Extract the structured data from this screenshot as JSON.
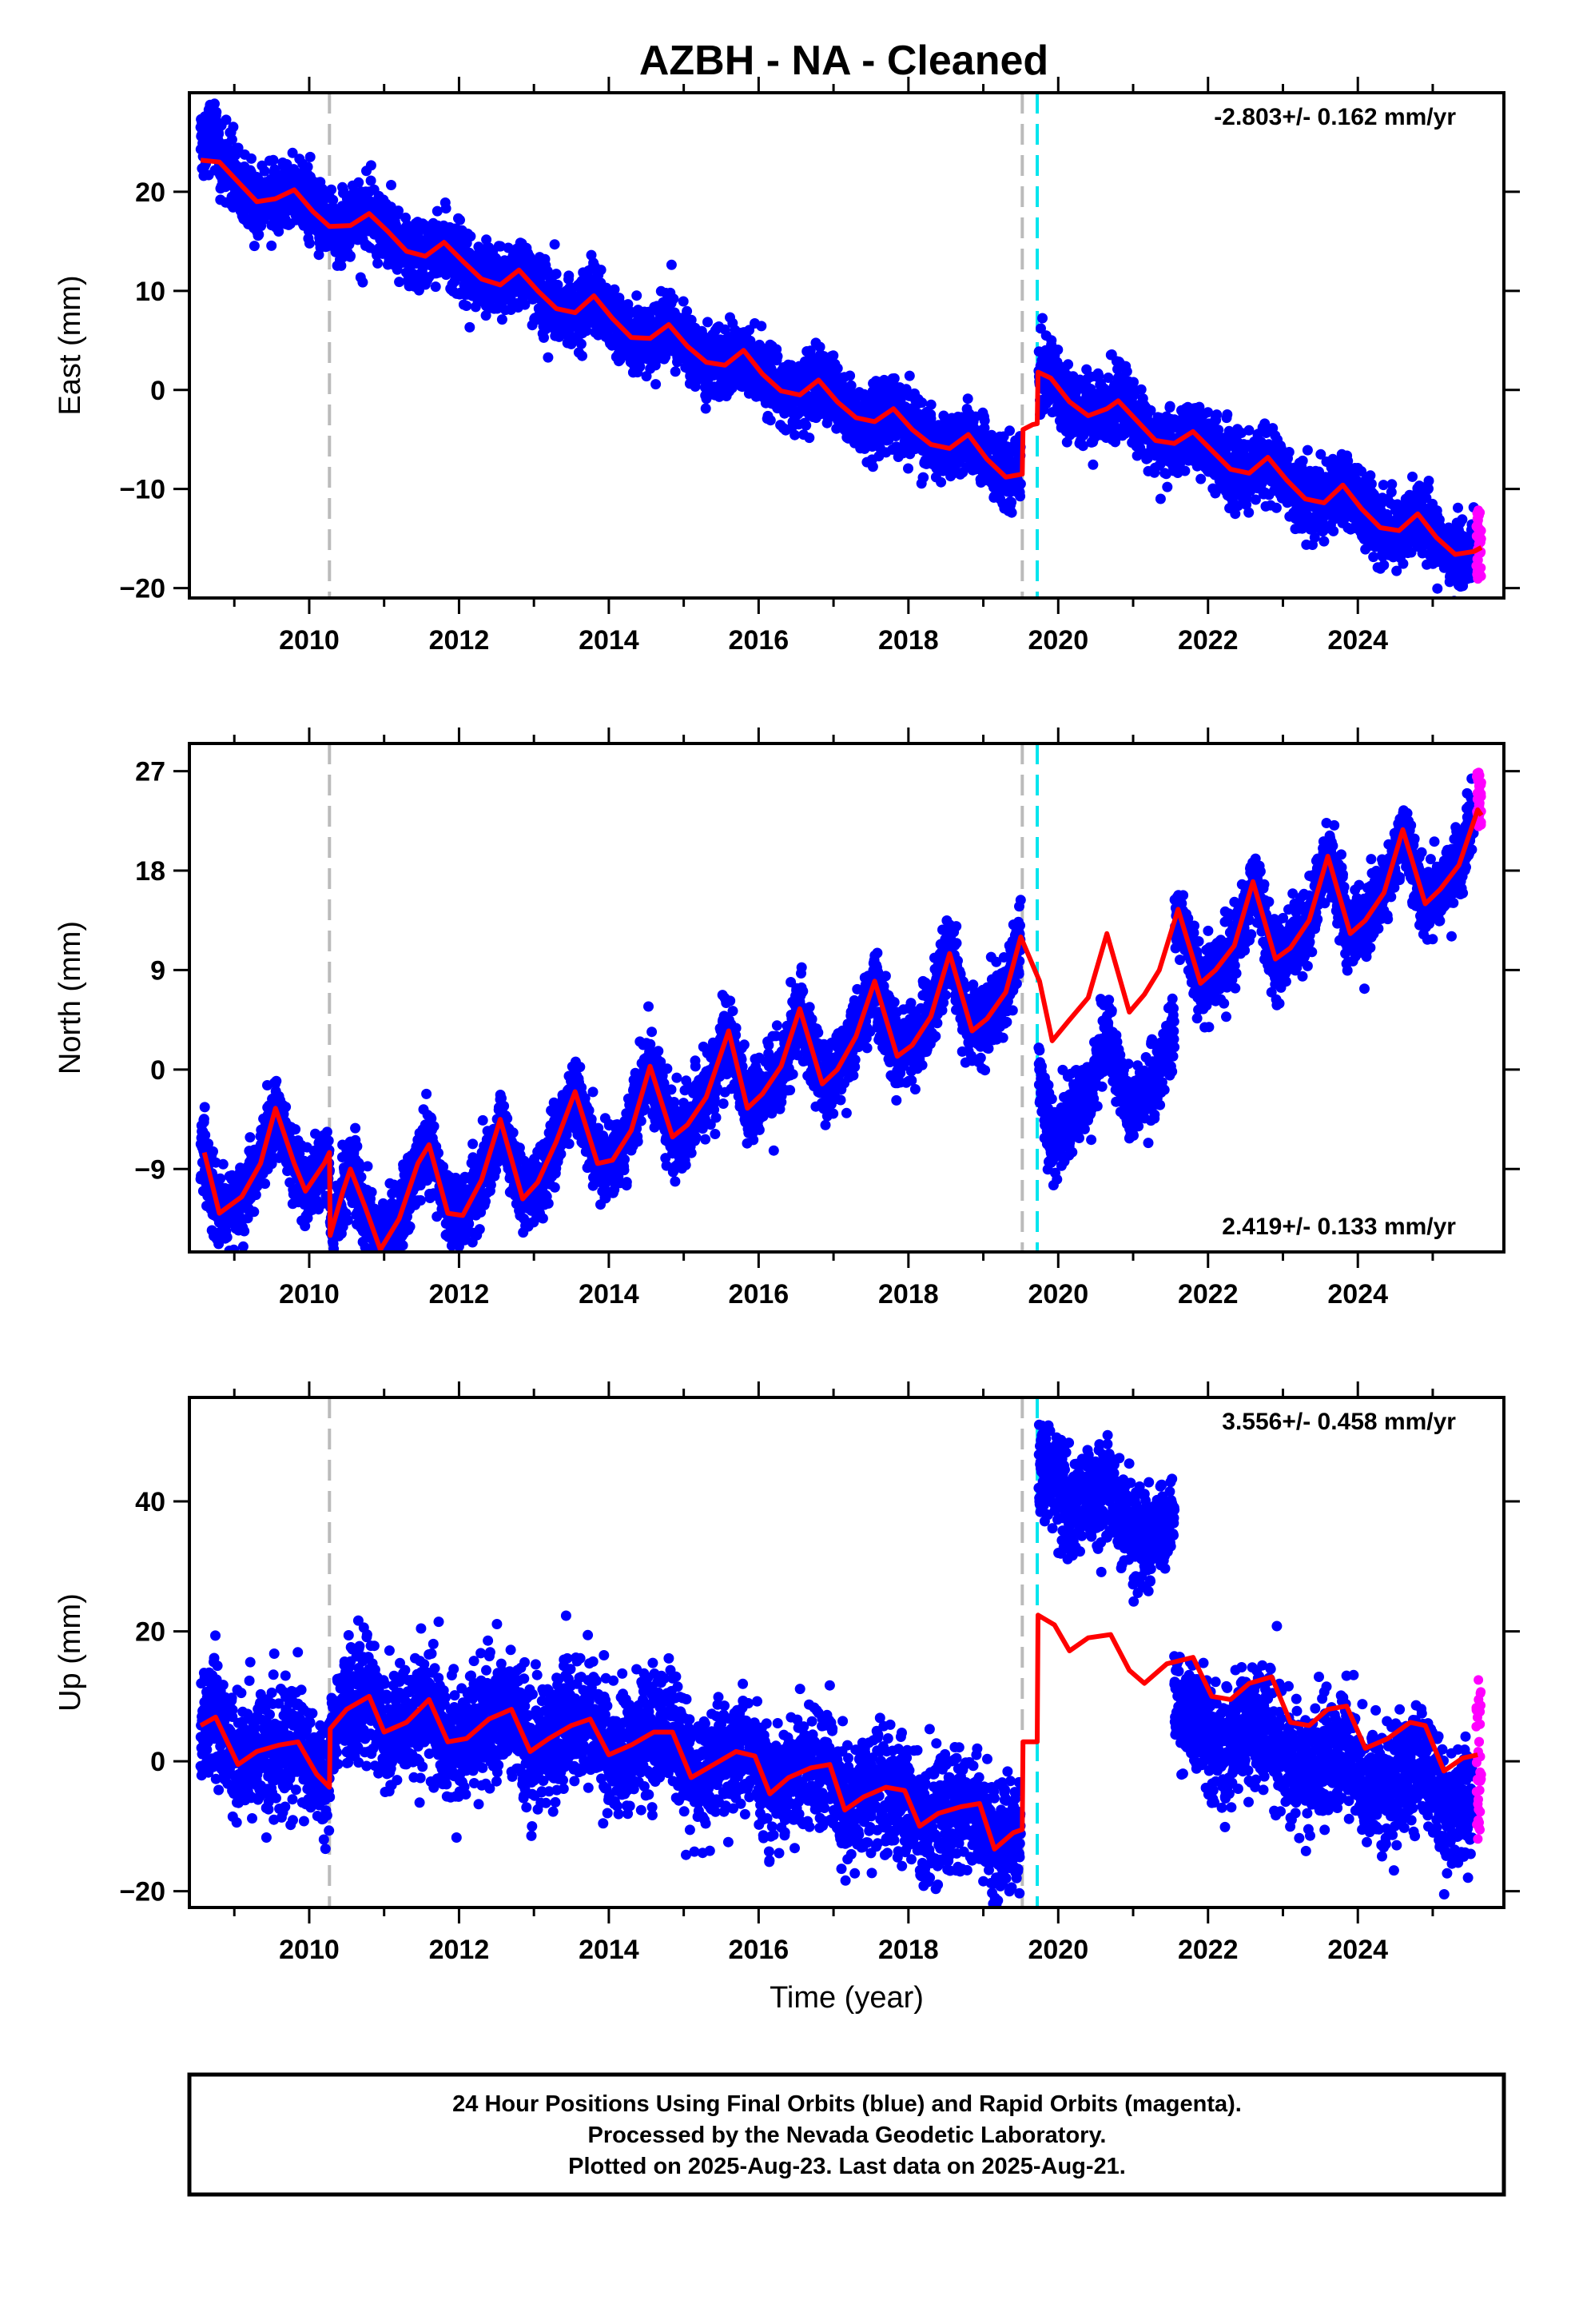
{
  "figure": {
    "title": "AZBH  - NA - Cleaned",
    "footer_lines": [
      "24 Hour Positions Using Final Orbits (blue) and Rapid Orbits (magenta).",
      "Processed by the Nevada Geodetic Laboratory.",
      "Plotted on 2025-Aug-23. Last data on 2025-Aug-21."
    ],
    "colors": {
      "final_orbit": "#0000ff",
      "rapid_orbit": "#ff00ff",
      "model": "#ff0000",
      "equipment_change": "#bbbbbb",
      "earthquake": "#00e5ee"
    }
  },
  "chart_data": [
    {
      "type": "scatter",
      "ylabel": "East (mm)",
      "xlabel": "",
      "xlim": [
        2008.4,
        2025.95
      ],
      "ylim": [
        -21,
        30
      ],
      "yticks": [
        20,
        10,
        0,
        -10,
        -20
      ],
      "xticks": [
        2010,
        2012,
        2014,
        2016,
        2018,
        2020,
        2022,
        2024
      ],
      "rate_label": "-2.803+/- 0.162 mm/yr",
      "rate_position": "top-right",
      "rate": -2.803,
      "rapid_range": [
        -20,
        -12
      ],
      "vlines": {
        "gray": [
          2010.27,
          2019.52
        ],
        "cyan": [
          2019.72
        ]
      },
      "model_knots": [
        [
          2008.55,
          23.2
        ],
        [
          2008.8,
          23.0
        ],
        [
          2009.05,
          21.0
        ],
        [
          2009.3,
          19.0
        ],
        [
          2009.55,
          19.3
        ],
        [
          2009.8,
          20.2
        ],
        [
          2010.05,
          18.0
        ],
        [
          2010.27,
          16.5
        ],
        [
          2010.55,
          16.6
        ],
        [
          2010.8,
          17.8
        ],
        [
          2011.05,
          16.0
        ],
        [
          2011.3,
          14.0
        ],
        [
          2011.55,
          13.5
        ],
        [
          2011.8,
          14.9
        ],
        [
          2012.05,
          13.0
        ],
        [
          2012.3,
          11.2
        ],
        [
          2012.55,
          10.6
        ],
        [
          2012.8,
          12.1
        ],
        [
          2013.05,
          10.0
        ],
        [
          2013.3,
          8.2
        ],
        [
          2013.55,
          7.8
        ],
        [
          2013.8,
          9.5
        ],
        [
          2014.05,
          7.2
        ],
        [
          2014.3,
          5.3
        ],
        [
          2014.55,
          5.2
        ],
        [
          2014.8,
          6.6
        ],
        [
          2015.05,
          4.4
        ],
        [
          2015.3,
          2.8
        ],
        [
          2015.55,
          2.5
        ],
        [
          2015.8,
          4.0
        ],
        [
          2016.05,
          1.6
        ],
        [
          2016.3,
          -0.1
        ],
        [
          2016.55,
          -0.5
        ],
        [
          2016.8,
          1.0
        ],
        [
          2017.05,
          -1.2
        ],
        [
          2017.3,
          -2.8
        ],
        [
          2017.55,
          -3.2
        ],
        [
          2017.8,
          -1.9
        ],
        [
          2018.05,
          -4.0
        ],
        [
          2018.3,
          -5.5
        ],
        [
          2018.55,
          -5.9
        ],
        [
          2018.8,
          -4.5
        ],
        [
          2019.05,
          -7.0
        ],
        [
          2019.3,
          -8.8
        ],
        [
          2019.52,
          -8.5
        ],
        [
          2019.53,
          -4.0
        ],
        [
          2019.66,
          -3.5
        ],
        [
          2019.72,
          -3.4
        ],
        [
          2019.73,
          1.8
        ],
        [
          2019.9,
          1.2
        ],
        [
          2020.15,
          -1.2
        ],
        [
          2020.4,
          -2.6
        ],
        [
          2020.65,
          -1.9
        ],
        [
          2020.8,
          -1.1
        ],
        [
          2021.05,
          -3.1
        ],
        [
          2021.3,
          -5.1
        ],
        [
          2021.55,
          -5.4
        ],
        [
          2021.8,
          -4.2
        ],
        [
          2022.05,
          -6.1
        ],
        [
          2022.3,
          -8.0
        ],
        [
          2022.55,
          -8.4
        ],
        [
          2022.8,
          -6.8
        ],
        [
          2023.05,
          -9.1
        ],
        [
          2023.3,
          -11.0
        ],
        [
          2023.55,
          -11.4
        ],
        [
          2023.8,
          -9.6
        ],
        [
          2024.05,
          -12.0
        ],
        [
          2024.3,
          -13.9
        ],
        [
          2024.55,
          -14.2
        ],
        [
          2024.8,
          -12.5
        ],
        [
          2025.05,
          -14.9
        ],
        [
          2025.3,
          -16.6
        ],
        [
          2025.55,
          -16.3
        ],
        [
          2025.65,
          -15.9
        ]
      ],
      "data_segments": [
        {
          "x": [
            2008.55,
            2008.8
          ],
          "offset": 2.2,
          "noise": 2.0
        },
        {
          "x": [
            2008.8,
            2019.5
          ],
          "offset": 0.0,
          "noise": 1.7
        },
        {
          "x": [
            2019.74,
            2025.55
          ],
          "offset": 0.0,
          "noise": 1.7
        }
      ]
    },
    {
      "type": "scatter",
      "ylabel": "North (mm)",
      "xlabel": "",
      "xlim": [
        2008.4,
        2025.95
      ],
      "ylim": [
        -16.5,
        29.5
      ],
      "yticks": [
        27,
        18,
        9,
        0,
        -9
      ],
      "xticks": [
        2010,
        2012,
        2014,
        2016,
        2018,
        2020,
        2022,
        2024
      ],
      "rate_label": "2.419+/- 0.133 mm/yr",
      "rate_position": "bottom-right",
      "rate": 2.419,
      "rapid_range": [
        22,
        27
      ],
      "vlines": {
        "gray": [
          2010.27,
          2019.52
        ],
        "cyan": [
          2019.72
        ]
      },
      "model_knots": [
        [
          2008.6,
          -7.5
        ],
        [
          2008.8,
          -13.0
        ],
        [
          2009.1,
          -11.5
        ],
        [
          2009.35,
          -8.5
        ],
        [
          2009.55,
          -3.5
        ],
        [
          2009.8,
          -8.5
        ],
        [
          2009.95,
          -11.0
        ],
        [
          2010.2,
          -8.5
        ],
        [
          2010.27,
          -7.5
        ],
        [
          2010.28,
          -15.0
        ],
        [
          2010.45,
          -11.0
        ],
        [
          2010.55,
          -9.0
        ],
        [
          2010.75,
          -12.5
        ],
        [
          2010.95,
          -16.3
        ],
        [
          2011.2,
          -13.5
        ],
        [
          2011.45,
          -8.5
        ],
        [
          2011.6,
          -6.8
        ],
        [
          2011.85,
          -13.0
        ],
        [
          2012.05,
          -13.2
        ],
        [
          2012.3,
          -10.0
        ],
        [
          2012.55,
          -4.5
        ],
        [
          2012.85,
          -11.7
        ],
        [
          2013.05,
          -10.2
        ],
        [
          2013.3,
          -6.5
        ],
        [
          2013.55,
          -2.0
        ],
        [
          2013.85,
          -8.5
        ],
        [
          2014.05,
          -8.2
        ],
        [
          2014.3,
          -5.5
        ],
        [
          2014.55,
          0.3
        ],
        [
          2014.85,
          -6.1
        ],
        [
          2015.05,
          -5.0
        ],
        [
          2015.3,
          -2.5
        ],
        [
          2015.6,
          3.5
        ],
        [
          2015.85,
          -3.5
        ],
        [
          2016.05,
          -2.2
        ],
        [
          2016.3,
          0.3
        ],
        [
          2016.55,
          5.5
        ],
        [
          2016.85,
          -1.3
        ],
        [
          2017.05,
          0.0
        ],
        [
          2017.3,
          3.0
        ],
        [
          2017.55,
          8.0
        ],
        [
          2017.85,
          1.2
        ],
        [
          2018.05,
          2.2
        ],
        [
          2018.3,
          4.8
        ],
        [
          2018.55,
          10.5
        ],
        [
          2018.85,
          3.5
        ],
        [
          2019.05,
          4.6
        ],
        [
          2019.3,
          7.0
        ],
        [
          2019.5,
          12.0
        ],
        [
          2019.75,
          8.0
        ],
        [
          2019.92,
          2.6
        ],
        [
          2020.15,
          4.5
        ],
        [
          2020.4,
          6.5
        ],
        [
          2020.65,
          12.3
        ],
        [
          2020.95,
          5.2
        ],
        [
          2021.15,
          6.8
        ],
        [
          2021.35,
          9.0
        ],
        [
          2021.6,
          14.5
        ],
        [
          2021.9,
          7.8
        ],
        [
          2022.1,
          9.0
        ],
        [
          2022.35,
          11.2
        ],
        [
          2022.6,
          17.0
        ],
        [
          2022.9,
          10.0
        ],
        [
          2023.1,
          11.0
        ],
        [
          2023.35,
          13.5
        ],
        [
          2023.6,
          19.3
        ],
        [
          2023.9,
          12.3
        ],
        [
          2024.1,
          13.5
        ],
        [
          2024.35,
          16.0
        ],
        [
          2024.6,
          21.7
        ],
        [
          2024.9,
          15.0
        ],
        [
          2025.1,
          16.3
        ],
        [
          2025.35,
          18.5
        ],
        [
          2025.6,
          23.5
        ],
        [
          2025.65,
          23.0
        ]
      ],
      "data_segments": [
        {
          "x": [
            2008.55,
            2019.5
          ],
          "offset": 0.0,
          "noise": 1.7
        },
        {
          "x": [
            2019.74,
            2021.55
          ],
          "offset": -9.0,
          "noise": 1.6
        },
        {
          "x": [
            2021.55,
            2025.55
          ],
          "offset": 0.0,
          "noise": 1.6
        }
      ]
    },
    {
      "type": "scatter",
      "ylabel": "Up (mm)",
      "xlabel": "Time (year)",
      "xlim": [
        2008.4,
        2025.95
      ],
      "ylim": [
        -22.5,
        56
      ],
      "yticks": [
        40,
        20,
        0,
        -20
      ],
      "xticks": [
        2010,
        2012,
        2014,
        2016,
        2018,
        2020,
        2022,
        2024
      ],
      "rate_label": "3.556+/- 0.458 mm/yr",
      "rate_position": "top-right",
      "rate": 3.556,
      "rapid_range": [
        -12,
        13
      ],
      "vlines": {
        "gray": [
          2010.27,
          2019.52
        ],
        "cyan": [
          2019.72
        ]
      },
      "model_knots": [
        [
          2008.55,
          5.5
        ],
        [
          2008.75,
          6.8
        ],
        [
          2009.05,
          -0.5
        ],
        [
          2009.3,
          1.5
        ],
        [
          2009.6,
          2.5
        ],
        [
          2009.85,
          3.0
        ],
        [
          2010.1,
          -2.0
        ],
        [
          2010.27,
          -4.0
        ],
        [
          2010.28,
          5.0
        ],
        [
          2010.5,
          8.0
        ],
        [
          2010.8,
          10.0
        ],
        [
          2011.0,
          4.5
        ],
        [
          2011.3,
          6.0
        ],
        [
          2011.6,
          9.5
        ],
        [
          2011.85,
          3.0
        ],
        [
          2012.1,
          3.5
        ],
        [
          2012.4,
          6.5
        ],
        [
          2012.7,
          8.0
        ],
        [
          2012.95,
          1.5
        ],
        [
          2013.2,
          3.5
        ],
        [
          2013.5,
          5.5
        ],
        [
          2013.75,
          6.5
        ],
        [
          2014.0,
          1.0
        ],
        [
          2014.3,
          2.5
        ],
        [
          2014.6,
          4.5
        ],
        [
          2014.85,
          4.5
        ],
        [
          2015.1,
          -2.5
        ],
        [
          2015.4,
          -0.5
        ],
        [
          2015.7,
          1.5
        ],
        [
          2015.95,
          0.8
        ],
        [
          2016.15,
          -5.0
        ],
        [
          2016.4,
          -2.5
        ],
        [
          2016.7,
          -1.0
        ],
        [
          2016.95,
          -0.5
        ],
        [
          2017.15,
          -7.5
        ],
        [
          2017.4,
          -5.5
        ],
        [
          2017.7,
          -4.0
        ],
        [
          2017.95,
          -4.5
        ],
        [
          2018.15,
          -10.0
        ],
        [
          2018.4,
          -8.0
        ],
        [
          2018.7,
          -7.0
        ],
        [
          2018.95,
          -6.5
        ],
        [
          2019.15,
          -13.5
        ],
        [
          2019.4,
          -11.0
        ],
        [
          2019.52,
          -10.5
        ],
        [
          2019.53,
          3.0
        ],
        [
          2019.72,
          3.0
        ],
        [
          2019.73,
          22.5
        ],
        [
          2019.95,
          21.0
        ],
        [
          2020.15,
          17.0
        ],
        [
          2020.4,
          19.0
        ],
        [
          2020.7,
          19.5
        ],
        [
          2020.95,
          14.0
        ],
        [
          2021.15,
          12.0
        ],
        [
          2021.45,
          15.0
        ],
        [
          2021.8,
          16.0
        ],
        [
          2022.05,
          10.0
        ],
        [
          2022.3,
          9.5
        ],
        [
          2022.55,
          12.0
        ],
        [
          2022.85,
          13.0
        ],
        [
          2023.1,
          6.0
        ],
        [
          2023.35,
          5.5
        ],
        [
          2023.6,
          8.0
        ],
        [
          2023.85,
          8.5
        ],
        [
          2024.1,
          2.0
        ],
        [
          2024.4,
          3.5
        ],
        [
          2024.7,
          6.0
        ],
        [
          2024.9,
          5.5
        ],
        [
          2025.15,
          -1.5
        ],
        [
          2025.4,
          0.5
        ],
        [
          2025.6,
          1.0
        ]
      ],
      "data_segments": [
        {
          "x": [
            2008.55,
            2019.5
          ],
          "offset": 0.0,
          "noise": 4.5
        },
        {
          "x": [
            2019.74,
            2021.55
          ],
          "offset": 22.0,
          "noise": 3.8
        },
        {
          "x": [
            2021.55,
            2025.55
          ],
          "offset": -7.0,
          "noise": 4.5
        }
      ]
    }
  ]
}
